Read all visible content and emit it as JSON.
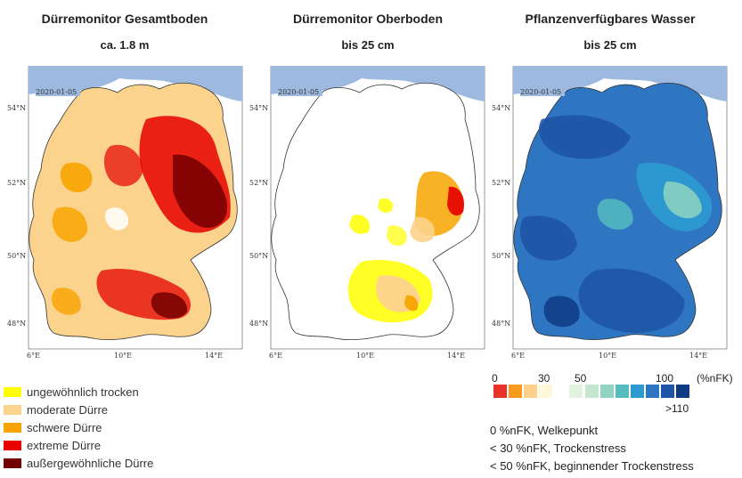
{
  "panels": [
    {
      "title": "Dürremonitor Gesamtboden",
      "subtitle": "ca. 1.8 m",
      "date": "2020-01-05"
    },
    {
      "title": "Dürremonitor Oberboden",
      "subtitle": "bis 25 cm",
      "date": "2020-01-05"
    },
    {
      "title": "Pflanzenverfügbares Wasser",
      "subtitle": "bis 25 cm",
      "date": "2020-01-05"
    }
  ],
  "lat_labels": [
    "54°N",
    "52°N",
    "50°N",
    "48°N"
  ],
  "lon_labels": [
    "6°E",
    "10°E",
    "14°E"
  ],
  "drought_legend": [
    {
      "label": "ungewöhnlich trocken",
      "color": "#ffff00"
    },
    {
      "label": "moderate Dürre",
      "color": "#fcd38d"
    },
    {
      "label": "schwere Dürre",
      "color": "#f7a400"
    },
    {
      "label": "extreme Dürre",
      "color": "#e60000"
    },
    {
      "label": "außergewöhnliche Dürre",
      "color": "#730000"
    }
  ],
  "nfk_scale": {
    "ticks": [
      "0",
      "30",
      "50",
      "100",
      "(%nFK)"
    ],
    "below": ">110",
    "colors": [
      "#e8322a",
      "#f79a1e",
      "#fdd18a",
      "#fff8d8",
      "#ffffff",
      "#e2f3e0",
      "#c5e7cf",
      "#8fd3c0",
      "#55bcc0",
      "#2e9bd0",
      "#2e76c2",
      "#1f55a6",
      "#0f3b84"
    ]
  },
  "notes": [
    "0 %nFK, Welkepunkt",
    "< 30 %nFK, Trockenstress",
    "< 50 %nFK, beginnender Trockenstress"
  ],
  "colors": {
    "sea": "#9db9e0",
    "land_white": "#ffffff",
    "border": "#333333",
    "river": "#a6c4e6"
  }
}
